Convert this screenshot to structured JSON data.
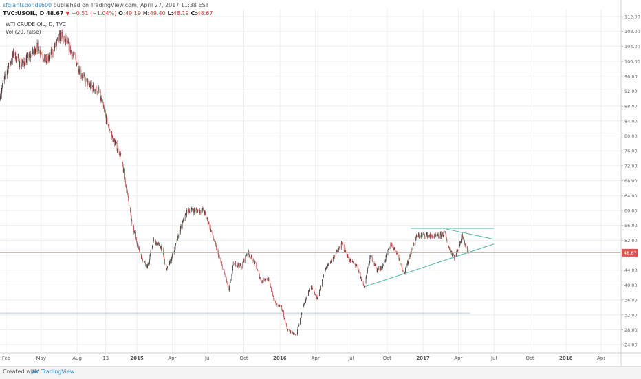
{
  "header": {
    "publisher": "sfgiantsbonds600",
    "published_text": "published on TradingView.com, April 27, 2017 11:38 EST",
    "symbol": "TVC:USOIL, D",
    "last": "48.67",
    "change": "▼ −0.51 (−1.04%)",
    "ohlc": [
      {
        "k": "O:",
        "v": "49.19"
      },
      {
        "k": "H:",
        "v": "49.40"
      },
      {
        "k": "L:",
        "v": "48.19"
      },
      {
        "k": "C:",
        "v": "48.67"
      }
    ]
  },
  "legend": {
    "main": "WTI CRUDE OIL, D, TVC",
    "vol": "Vol (20, false)"
  },
  "footer": {
    "created": "Created with",
    "brand": "TradingView"
  },
  "colors": {
    "candle_up": "#3d3d3d",
    "candle_down": "#c0504d",
    "trendline": "#4fb3a9",
    "support_line": "#aad0ea",
    "price_line": "#e8908a",
    "price_tag": "#d9534f"
  },
  "chart_data": {
    "type": "candlestick",
    "title": "WTI CRUDE OIL, D, TVC",
    "y_axis_position": "right",
    "ylim": [
      22,
      112
    ],
    "y_ticks": [
      24,
      28,
      32,
      36,
      40,
      44,
      48,
      52,
      56,
      60,
      64,
      68,
      72,
      76,
      80,
      84,
      88,
      92,
      96,
      100,
      104,
      108,
      112
    ],
    "x_ticks": [
      {
        "label": "Feb",
        "date": "2014-02-01"
      },
      {
        "label": "May",
        "date": "2014-05-01"
      },
      {
        "label": "Aug",
        "date": "2014-08-01"
      },
      {
        "label": "13",
        "date": "2014-10-13"
      },
      {
        "label": "2015",
        "date": "2015-01-01"
      },
      {
        "label": "Apr",
        "date": "2015-04-01"
      },
      {
        "label": "Jul",
        "date": "2015-07-01"
      },
      {
        "label": "Oct",
        "date": "2015-10-01"
      },
      {
        "label": "2016",
        "date": "2016-01-01"
      },
      {
        "label": "Apr",
        "date": "2016-04-01"
      },
      {
        "label": "Jul",
        "date": "2016-07-01"
      },
      {
        "label": "Oct",
        "date": "2016-10-01"
      },
      {
        "label": "2017",
        "date": "2017-01-01"
      },
      {
        "label": "Apr",
        "date": "2017-04-01"
      },
      {
        "label": "Jul",
        "date": "2017-07-01"
      },
      {
        "label": "Oct",
        "date": "2017-10-01"
      },
      {
        "label": "2018",
        "date": "2018-01-01"
      },
      {
        "label": "Apr",
        "date": "2018-04-01"
      }
    ],
    "xlim": [
      "2014-01-16",
      "2018-05-20"
    ],
    "price_path": [
      [
        "2014-01-16",
        91
      ],
      [
        "2014-02-01",
        97
      ],
      [
        "2014-02-20",
        102
      ],
      [
        "2014-03-10",
        99
      ],
      [
        "2014-04-01",
        101
      ],
      [
        "2014-04-20",
        104
      ],
      [
        "2014-05-15",
        100
      ],
      [
        "2014-06-01",
        103
      ],
      [
        "2014-06-20",
        107
      ],
      [
        "2014-07-05",
        105
      ],
      [
        "2014-07-25",
        101
      ],
      [
        "2014-08-10",
        97
      ],
      [
        "2014-08-25",
        94
      ],
      [
        "2014-09-10",
        93
      ],
      [
        "2014-09-25",
        92
      ],
      [
        "2014-10-13",
        85
      ],
      [
        "2014-11-01",
        79
      ],
      [
        "2014-11-20",
        75
      ],
      [
        "2014-12-05",
        66
      ],
      [
        "2014-12-20",
        56
      ],
      [
        "2015-01-10",
        48
      ],
      [
        "2015-01-28",
        45
      ],
      [
        "2015-02-12",
        52
      ],
      [
        "2015-03-05",
        50
      ],
      [
        "2015-03-18",
        44
      ],
      [
        "2015-04-05",
        49
      ],
      [
        "2015-04-25",
        56
      ],
      [
        "2015-05-10",
        60
      ],
      [
        "2015-06-01",
        60
      ],
      [
        "2015-06-20",
        60
      ],
      [
        "2015-07-05",
        56
      ],
      [
        "2015-07-25",
        49
      ],
      [
        "2015-08-10",
        44
      ],
      [
        "2015-08-24",
        38.5
      ],
      [
        "2015-09-05",
        46
      ],
      [
        "2015-09-25",
        45
      ],
      [
        "2015-10-10",
        49
      ],
      [
        "2015-10-28",
        46
      ],
      [
        "2015-11-15",
        41
      ],
      [
        "2015-12-01",
        42
      ],
      [
        "2015-12-20",
        35
      ],
      [
        "2016-01-05",
        34
      ],
      [
        "2016-01-20",
        28
      ],
      [
        "2016-02-11",
        26.5
      ],
      [
        "2016-03-01",
        34
      ],
      [
        "2016-03-20",
        40
      ],
      [
        "2016-04-05",
        36
      ],
      [
        "2016-04-25",
        44
      ],
      [
        "2016-05-20",
        48
      ],
      [
        "2016-06-08",
        51
      ],
      [
        "2016-06-25",
        47
      ],
      [
        "2016-07-15",
        45
      ],
      [
        "2016-08-03",
        39.5
      ],
      [
        "2016-08-20",
        48
      ],
      [
        "2016-09-05",
        44
      ],
      [
        "2016-09-20",
        45
      ],
      [
        "2016-10-10",
        51
      ],
      [
        "2016-10-25",
        49
      ],
      [
        "2016-11-14",
        43
      ],
      [
        "2016-12-01",
        49
      ],
      [
        "2016-12-15",
        53
      ],
      [
        "2017-01-05",
        53.5
      ],
      [
        "2017-01-25",
        53
      ],
      [
        "2017-02-10",
        53
      ],
      [
        "2017-02-25",
        54
      ],
      [
        "2017-03-08",
        50
      ],
      [
        "2017-03-22",
        47.5
      ],
      [
        "2017-04-05",
        51
      ],
      [
        "2017-04-12",
        53.5
      ],
      [
        "2017-04-20",
        50
      ],
      [
        "2017-04-27",
        48.67
      ]
    ],
    "trendlines": [
      {
        "from": [
          "2016-08-03",
          39.5
        ],
        "to": [
          "2017-07-01",
          51
        ]
      },
      {
        "from": [
          "2016-12-01",
          55.2
        ],
        "to": [
          "2017-07-01",
          55.2
        ]
      },
      {
        "from": [
          "2017-03-01",
          55
        ],
        "to": [
          "2017-07-01",
          52.3
        ]
      },
      {
        "from": [
          "2014-01-16",
          32.5
        ],
        "to": [
          "2017-05-01",
          32.5
        ]
      }
    ],
    "last_price": 48.67,
    "last_price_label": "48.67"
  }
}
